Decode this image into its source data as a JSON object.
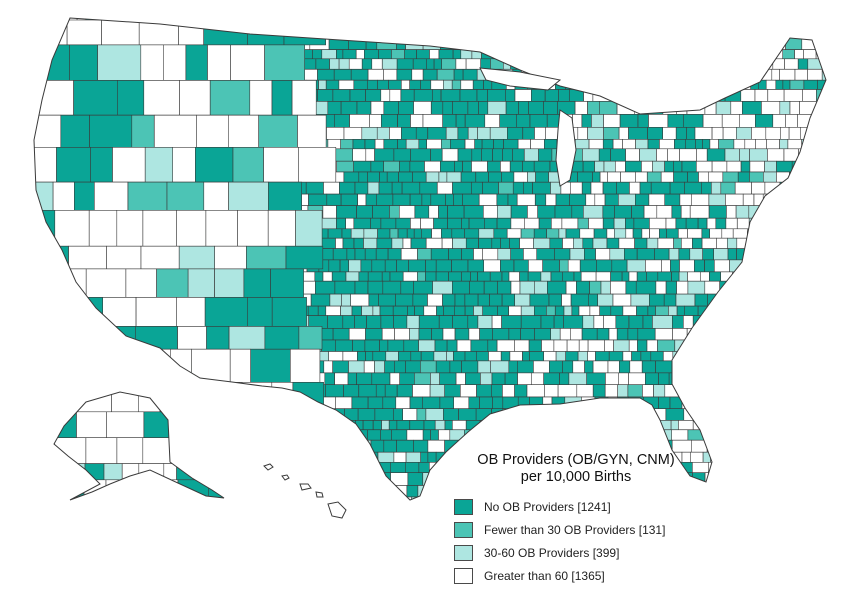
{
  "legend": {
    "title_line1": "OB Providers  (OB/GYN, CNM)",
    "title_line2": "per 10,000 Births",
    "items": [
      {
        "label": "No OB Providers [1241]",
        "color": "#0aa596",
        "count": 1241
      },
      {
        "label": "Fewer than 30 OB Providers [131]",
        "color": "#4cc4b5",
        "count": 131
      },
      {
        "label": "30-60 OB Providers [399]",
        "color": "#aee6e1",
        "count": 399
      },
      {
        "label": "Greater than 60 [1365]",
        "color": "#ffffff",
        "count": 1365
      }
    ]
  },
  "colors": {
    "county_border": "#3a3a3a",
    "none": "#0aa596",
    "fewer30": "#4cc4b5",
    "mid": "#aee6e1",
    "high": "#ffffff"
  }
}
